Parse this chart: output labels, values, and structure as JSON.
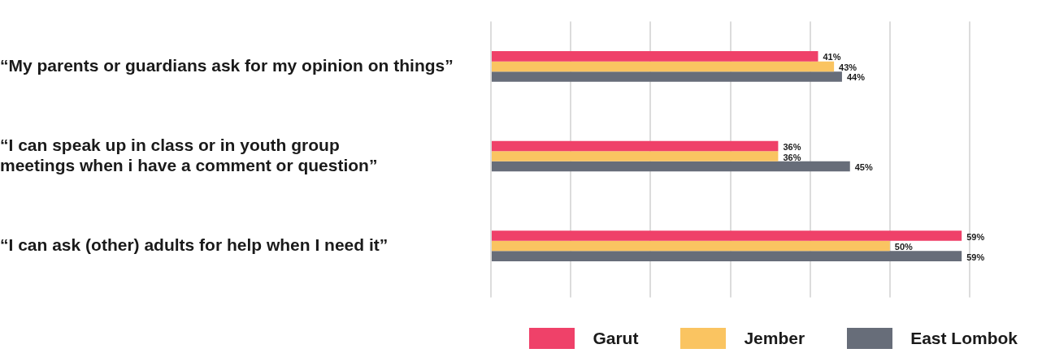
{
  "chart_data": {
    "type": "bar",
    "orientation": "horizontal",
    "categories": [
      "“My parents or guardians ask for my opinion on things”",
      "“I can speak up in class or in youth group meetings when i have a comment or question”",
      "“I can ask (other) adults for help when I need it”"
    ],
    "series": [
      {
        "name": "Garut",
        "color": "#ef4169",
        "values": [
          41,
          36,
          59
        ],
        "value_labels": [
          "41%",
          "36%",
          "59%"
        ]
      },
      {
        "name": "Jember",
        "color": "#fac461",
        "values": [
          43,
          36,
          50
        ],
        "value_labels": [
          "43%",
          "36%",
          "50%"
        ]
      },
      {
        "name": "East Lombok",
        "color": "#676d79",
        "values": [
          44,
          45,
          59
        ],
        "value_labels": [
          "44%",
          "45%",
          "59%"
        ]
      }
    ],
    "xlim": [
      0,
      60
    ],
    "xticks": [
      {
        "value": 0,
        "label": null
      },
      {
        "value": 10,
        "label": null
      },
      {
        "value": 20,
        "label": null
      },
      {
        "value": 30,
        "label": null
      },
      {
        "value": 40,
        "label": null
      },
      {
        "value": 50,
        "label": null
      },
      {
        "value": 60,
        "label": null
      }
    ],
    "tick_labels": "y",
    "grid": "x",
    "legend": "bottom right"
  }
}
